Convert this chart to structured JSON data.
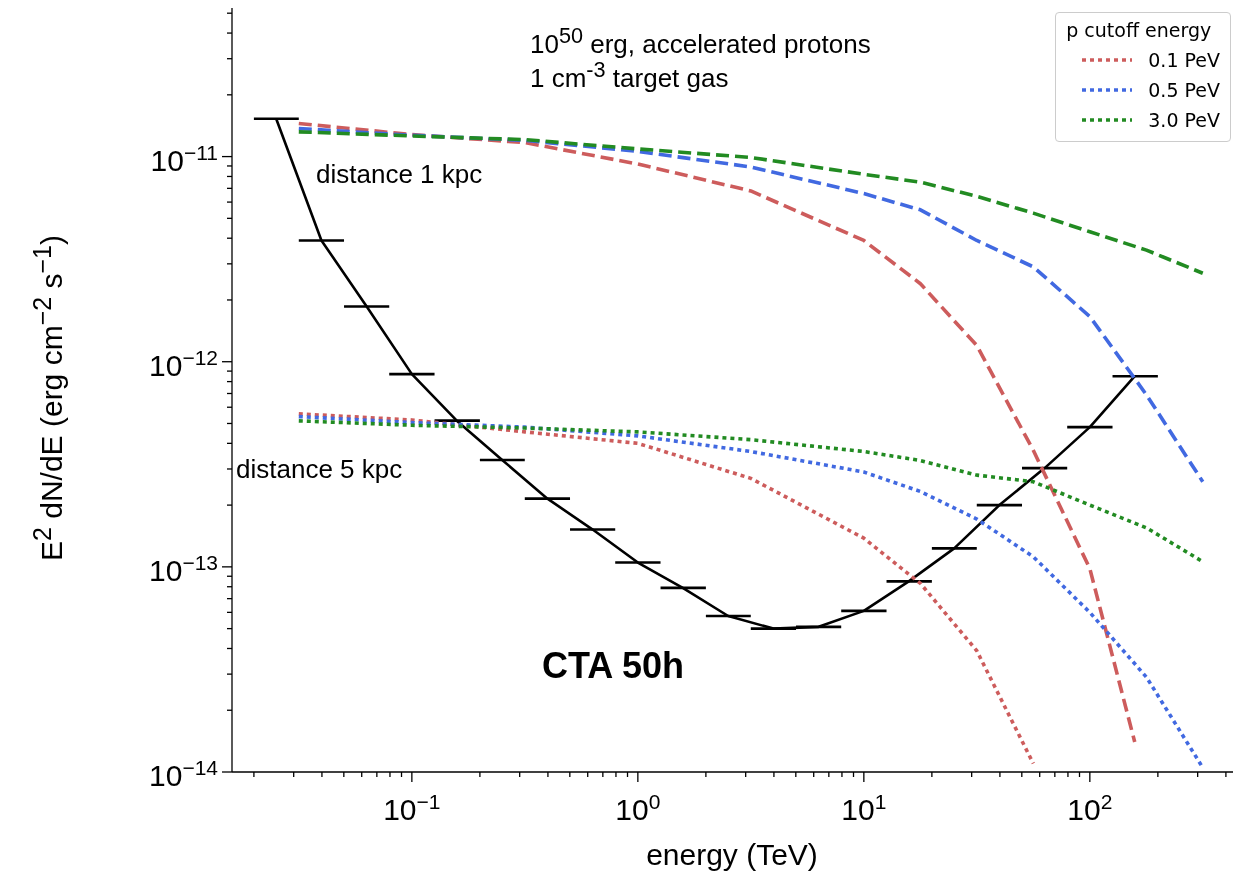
{
  "chart_data": {
    "type": "line",
    "xlabel": "energy (TeV)",
    "ylabel": "E$^{2}$ dN/dE (erg cm$^{−2}$ s$^{−1}$)",
    "legend_title": "p cutoff energy",
    "legend": "top right",
    "log": "xy",
    "xlim": [
      0.016,
      430
    ],
    "ylim": [
      1e-14,
      5.3e-11
    ],
    "xticks": [
      {
        "value": 0.02,
        "label": null
      },
      {
        "value": 0.03,
        "label": null
      },
      {
        "value": 0.04,
        "label": null
      },
      {
        "value": 0.05,
        "label": null
      },
      {
        "value": 0.06,
        "label": null
      },
      {
        "value": 0.07,
        "label": null
      },
      {
        "value": 0.08,
        "label": null
      },
      {
        "value": 0.09,
        "label": null
      },
      {
        "value": 0.1,
        "label": "10$^{−1}$"
      },
      {
        "value": 0.2,
        "label": null
      },
      {
        "value": 0.3,
        "label": null
      },
      {
        "value": 0.4,
        "label": null
      },
      {
        "value": 0.5,
        "label": null
      },
      {
        "value": 0.6,
        "label": null
      },
      {
        "value": 0.7,
        "label": null
      },
      {
        "value": 0.8,
        "label": null
      },
      {
        "value": 0.9,
        "label": null
      },
      {
        "value": 1,
        "label": "10$^{0}$"
      },
      {
        "value": 2,
        "label": null
      },
      {
        "value": 3,
        "label": null
      },
      {
        "value": 4,
        "label": null
      },
      {
        "value": 5,
        "label": null
      },
      {
        "value": 6,
        "label": null
      },
      {
        "value": 7,
        "label": null
      },
      {
        "value": 8,
        "label": null
      },
      {
        "value": 9,
        "label": null
      },
      {
        "value": 10,
        "label": "10$^{1}$"
      },
      {
        "value": 20,
        "label": null
      },
      {
        "value": 30,
        "label": null
      },
      {
        "value": 40,
        "label": null
      },
      {
        "value": 50,
        "label": null
      },
      {
        "value": 60,
        "label": null
      },
      {
        "value": 70,
        "label": null
      },
      {
        "value": 80,
        "label": null
      },
      {
        "value": 90,
        "label": null
      },
      {
        "value": 100,
        "label": "10$^{2}$"
      },
      {
        "value": 200,
        "label": null
      },
      {
        "value": 300,
        "label": null
      },
      {
        "value": 400,
        "label": null
      }
    ],
    "yticks": [
      {
        "value": 1e-14,
        "label": "10$^{−14}$"
      },
      {
        "value": 2e-14,
        "label": null
      },
      {
        "value": 3e-14,
        "label": null
      },
      {
        "value": 4e-14,
        "label": null
      },
      {
        "value": 5e-14,
        "label": null
      },
      {
        "value": 6e-14,
        "label": null
      },
      {
        "value": 7e-14,
        "label": null
      },
      {
        "value": 8e-14,
        "label": null
      },
      {
        "value": 9e-14,
        "label": null
      },
      {
        "value": 1e-13,
        "label": "10$^{−13}$"
      },
      {
        "value": 2e-13,
        "label": null
      },
      {
        "value": 3e-13,
        "label": null
      },
      {
        "value": 4e-13,
        "label": null
      },
      {
        "value": 5e-13,
        "label": null
      },
      {
        "value": 6e-13,
        "label": null
      },
      {
        "value": 7e-13,
        "label": null
      },
      {
        "value": 8e-13,
        "label": null
      },
      {
        "value": 9e-13,
        "label": null
      },
      {
        "value": 1e-12,
        "label": "10$^{−12}$"
      },
      {
        "value": 2e-12,
        "label": null
      },
      {
        "value": 3e-12,
        "label": null
      },
      {
        "value": 4e-12,
        "label": null
      },
      {
        "value": 5e-12,
        "label": null
      },
      {
        "value": 6e-12,
        "label": null
      },
      {
        "value": 7e-12,
        "label": null
      },
      {
        "value": 8e-12,
        "label": null
      },
      {
        "value": 9e-12,
        "label": null
      },
      {
        "value": 1e-11,
        "label": "10$^{−11}$"
      },
      {
        "value": 2e-11,
        "label": null
      },
      {
        "value": 3e-11,
        "label": null
      },
      {
        "value": 4e-11,
        "label": null
      },
      {
        "value": 5e-11,
        "label": null
      }
    ],
    "annotations": [
      "10$^{50}$ erg, accelerated protons",
      "1 cm$^{-3}$ target gas",
      "distance 1 kpc",
      "distance 5 kpc",
      "CTA 50h"
    ],
    "series": [
      {
        "type": "line",
        "color": "#000000",
        "line_style": "solid",
        "x": [
          0.0251,
          0.0398,
          0.0631,
          0.1,
          0.158,
          0.251,
          0.398,
          0.631,
          1,
          1.58,
          2.51,
          3.98,
          6.31,
          10,
          15.8,
          25.1,
          39.8,
          63.1,
          100,
          158
        ],
        "values": [
          1.53e-11,
          3.9e-12,
          1.86e-12,
          8.7e-13,
          5.16e-13,
          3.32e-13,
          2.15e-13,
          1.52e-13,
          1.05e-13,
          7.9e-14,
          5.76e-14,
          5e-14,
          5.1e-14,
          6.1e-14,
          8.5e-14,
          1.23e-13,
          2e-13,
          3.03e-13,
          4.8e-13,
          8.5e-13
        ],
        "xerrors": [
          [
            0.02,
            0.0316
          ],
          [
            0.0316,
            0.0501
          ],
          [
            0.0501,
            0.0794
          ],
          [
            0.0794,
            0.126
          ],
          [
            0.126,
            0.2
          ],
          [
            0.2,
            0.316
          ],
          [
            0.316,
            0.501
          ],
          [
            0.501,
            0.794
          ],
          [
            0.794,
            1.26
          ],
          [
            1.26,
            2
          ],
          [
            2,
            3.16
          ],
          [
            3.16,
            5.01
          ],
          [
            5.01,
            7.94
          ],
          [
            7.94,
            12.6
          ],
          [
            12.6,
            20
          ],
          [
            20,
            31.6
          ],
          [
            31.6,
            50.1
          ],
          [
            50.1,
            79.4
          ],
          [
            79.4,
            126
          ],
          [
            126,
            200
          ]
        ]
      },
      {
        "type": "line",
        "color": "#cd5c5c",
        "line_style": "dashed",
        "x": [
          0.0316,
          0.1,
          0.316,
          1,
          3.16,
          10,
          17.8,
          31.6,
          56.2,
          100,
          158
        ],
        "values": [
          1.45e-11,
          1.28e-11,
          1.17e-11,
          9.2e-12,
          6.8e-12,
          3.9e-12,
          2.4e-12,
          1.2e-12,
          3.7e-13,
          9.8e-14,
          1.4e-14
        ]
      },
      {
        "type": "line",
        "color": "#4169e1",
        "line_style": "dashed",
        "x": [
          0.0316,
          0.1,
          0.316,
          1,
          3.16,
          10,
          17.8,
          31.6,
          56.2,
          100,
          178,
          316
        ],
        "values": [
          1.37e-11,
          1.27e-11,
          1.2e-11,
          1.06e-11,
          8.9e-12,
          6.6e-12,
          5.5e-12,
          3.9e-12,
          2.9e-12,
          1.66e-12,
          6.9e-13,
          2.6e-13
        ]
      },
      {
        "type": "line",
        "color": "#228b22",
        "line_style": "dashed",
        "x": [
          0.0316,
          0.1,
          0.316,
          1,
          3.16,
          10,
          17.8,
          31.6,
          56.2,
          100,
          178,
          316
        ],
        "values": [
          1.32e-11,
          1.26e-11,
          1.21e-11,
          1.09e-11,
          9.9e-12,
          8.2e-12,
          7.5e-12,
          6.4e-12,
          5.3e-12,
          4.3e-12,
          3.5e-12,
          2.7e-12
        ]
      },
      {
        "type": "line",
        "name": "0.1 PeV",
        "color": "#cd5c5c",
        "line_style": "dotted",
        "x": [
          0.0316,
          0.1,
          0.316,
          1,
          3.16,
          10,
          17.8,
          31.6,
          56.2
        ],
        "values": [
          5.57e-13,
          5.2e-13,
          4.55e-13,
          4e-13,
          2.7e-13,
          1.38e-13,
          8.3e-14,
          3.9e-14,
          1.1e-14
        ]
      },
      {
        "type": "line",
        "name": "0.5 PeV",
        "color": "#4169e1",
        "line_style": "dotted",
        "x": [
          0.0316,
          0.1,
          0.316,
          1,
          3.16,
          10,
          17.8,
          31.6,
          56.2,
          100,
          178,
          316
        ],
        "values": [
          5.4e-13,
          5.05e-13,
          4.8e-13,
          4.35e-13,
          3.65e-13,
          2.9e-13,
          2.33e-13,
          1.71e-13,
          1.12e-13,
          6e-14,
          2.9e-14,
          1.05e-14
        ]
      },
      {
        "type": "line",
        "name": "3.0 PeV",
        "color": "#228b22",
        "line_style": "dotted",
        "x": [
          0.0316,
          0.1,
          0.316,
          1,
          3.16,
          10,
          17.8,
          31.6,
          56.2,
          100,
          178,
          316
        ],
        "values": [
          5.15e-13,
          4.9e-13,
          4.75e-13,
          4.55e-13,
          4.17e-13,
          3.65e-13,
          3.3e-13,
          2.8e-13,
          2.6e-13,
          2e-13,
          1.55e-13,
          1.06e-13
        ]
      }
    ]
  }
}
